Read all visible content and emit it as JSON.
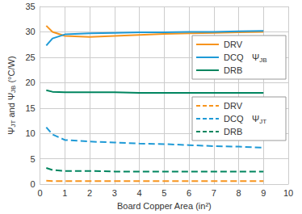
{
  "chart_data": {
    "type": "line",
    "x_label": "Board Copper Area (in²)",
    "y_label": "ΨJT and ΨJB (°C/W)",
    "x": [
      0.25,
      0.5,
      1,
      2,
      3,
      4,
      5,
      6,
      7,
      8,
      9
    ],
    "xlim": [
      0,
      10
    ],
    "xticks": [
      0,
      1,
      2,
      3,
      4,
      5,
      6,
      7,
      8,
      9,
      10
    ],
    "ylim": [
      0,
      35
    ],
    "yticks": [
      0,
      5,
      10,
      15,
      20,
      25,
      30,
      35
    ],
    "grid": true,
    "legend": "upper right",
    "series": [
      {
        "name": "DRV",
        "group": "ΨJB",
        "color": "#F7941D",
        "line_style": "solid",
        "values": [
          31.2,
          30.0,
          29.2,
          29.0,
          29.2,
          29.4,
          29.6,
          29.7,
          29.8,
          29.9,
          30.0
        ]
      },
      {
        "name": "DCQ",
        "group": "ΨJB",
        "color": "#1F9AD6",
        "line_style": "solid",
        "values": [
          27.3,
          28.7,
          29.5,
          29.7,
          29.8,
          29.9,
          29.9,
          30.0,
          30.0,
          30.1,
          30.2
        ]
      },
      {
        "name": "DRB",
        "group": "ΨJB",
        "color": "#00855F",
        "line_style": "solid",
        "values": [
          18.5,
          18.2,
          18.1,
          18.1,
          18.1,
          18.0,
          18.0,
          18.0,
          18.0,
          18.0,
          18.0
        ]
      },
      {
        "name": "DRV",
        "group": "ΨJT",
        "color": "#F7941D",
        "line_style": "dashed",
        "values": [
          0.7,
          0.6,
          0.6,
          0.6,
          0.6,
          0.6,
          0.6,
          0.6,
          0.6,
          0.6,
          0.6
        ]
      },
      {
        "name": "DCQ",
        "group": "ΨJT",
        "color": "#1F9AD6",
        "line_style": "dashed",
        "values": [
          11.2,
          9.8,
          8.7,
          8.4,
          8.2,
          8.0,
          7.9,
          7.7,
          7.5,
          7.4,
          7.2
        ]
      },
      {
        "name": "DRB",
        "group": "ΨJT",
        "color": "#00855F",
        "line_style": "dashed",
        "values": [
          3.2,
          2.8,
          2.6,
          2.6,
          2.5,
          2.5,
          2.5,
          2.5,
          2.5,
          2.5,
          2.5
        ]
      }
    ]
  }
}
